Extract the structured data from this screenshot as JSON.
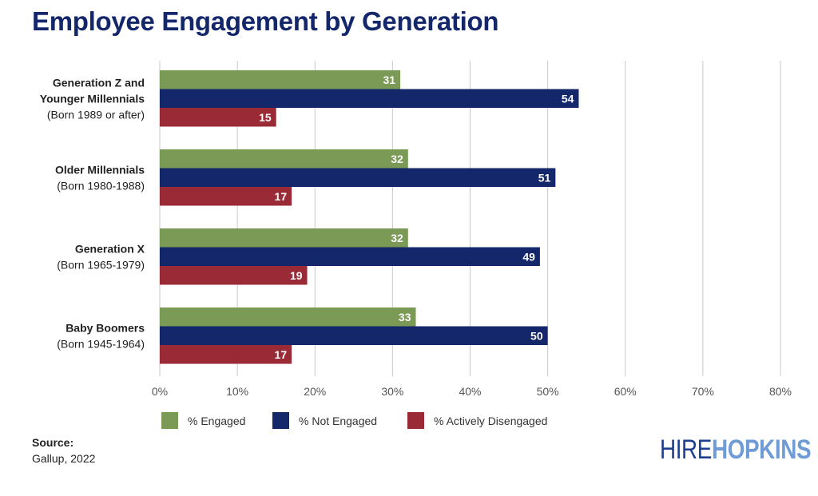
{
  "chart_data": {
    "type": "bar",
    "orientation": "horizontal",
    "title": "Employee Engagement by Generation",
    "categories": [
      {
        "name": "Generation Z and Younger Millennials",
        "sub": "(Born 1989 or after)"
      },
      {
        "name": "Older Millennials",
        "sub": "(Born 1980-1988)"
      },
      {
        "name": "Generation X",
        "sub": "(Born 1965-1979)"
      },
      {
        "name": "Baby Boomers",
        "sub": "(Born 1945-1964)"
      }
    ],
    "series": [
      {
        "name": "% Engaged",
        "color": "#7a9a56",
        "values": [
          31,
          32,
          32,
          33
        ]
      },
      {
        "name": "% Not Engaged",
        "color": "#14276b",
        "values": [
          54,
          51,
          49,
          50
        ]
      },
      {
        "name": "% Actively Disengaged",
        "color": "#9a2a35",
        "values": [
          15,
          17,
          19,
          17
        ]
      }
    ],
    "xlim": [
      0,
      80
    ],
    "xticks": [
      "0%",
      "10%",
      "20%",
      "30%",
      "40%",
      "50%",
      "60%",
      "70%",
      "80%"
    ],
    "grid": true,
    "legend": "bottom"
  },
  "source": {
    "label": "Source:",
    "text": "Gallup, 2022"
  },
  "logo": {
    "part1": "HIRE",
    "part2": "HOPKINS"
  }
}
